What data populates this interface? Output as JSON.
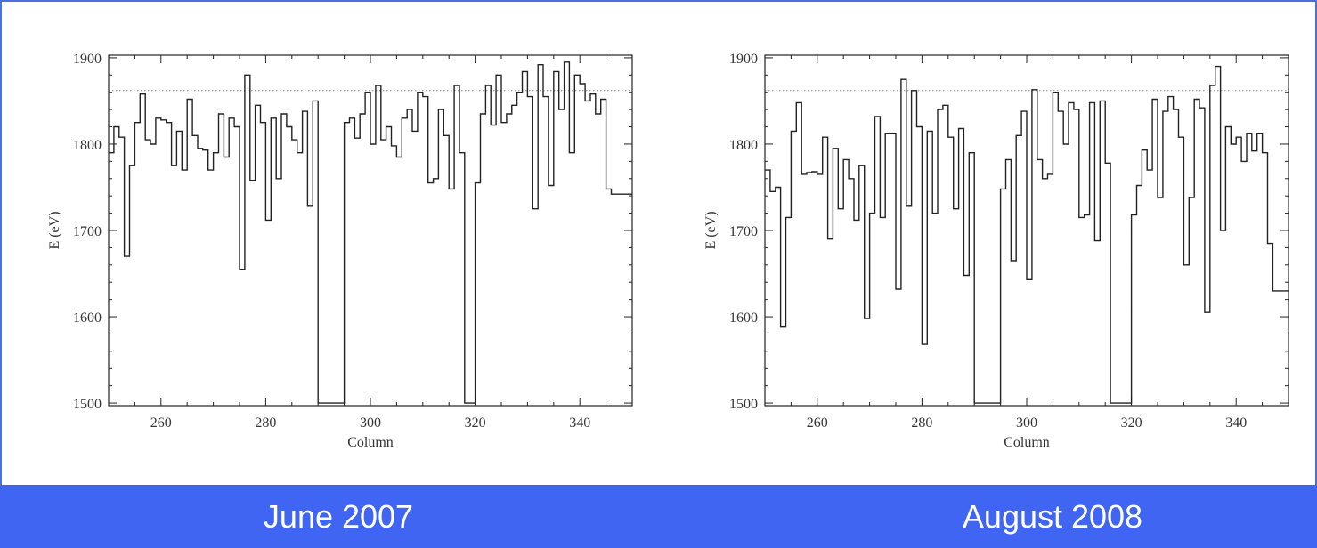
{
  "colors": {
    "banner": "#3f65f2",
    "border": "#4a6fe3",
    "line": "#222222",
    "reference_line": "#888888"
  },
  "captions": [
    "June 2007",
    "August 2008"
  ],
  "chart_data": [
    {
      "type": "line",
      "title": "",
      "xlabel": "Column",
      "ylabel": "E (eV)",
      "xlim": [
        250,
        350
      ],
      "ylim": [
        1497,
        1903
      ],
      "xticks": [
        260,
        280,
        300,
        320,
        340
      ],
      "yticks": [
        1500,
        1600,
        1700,
        1800,
        1900
      ],
      "reference_line": 1862,
      "grid": false,
      "series": [
        {
          "x": [
            250,
            251,
            252,
            253,
            254,
            255,
            256,
            257,
            258,
            259,
            260,
            261,
            262,
            263,
            264,
            265,
            266,
            267,
            268,
            269,
            270,
            271,
            272,
            273,
            274,
            275,
            276,
            277,
            278,
            279,
            280,
            281,
            282,
            283,
            284,
            285,
            286,
            287,
            288,
            289,
            290,
            291,
            292,
            293,
            294,
            295,
            296,
            297,
            298,
            299,
            300,
            301,
            302,
            303,
            304,
            305,
            306,
            307,
            308,
            309,
            310,
            311,
            312,
            313,
            314,
            315,
            316,
            317,
            318,
            319,
            320,
            321,
            322,
            323,
            324,
            325,
            326,
            327,
            328,
            329,
            330,
            331,
            332,
            333,
            334,
            335,
            336,
            337,
            338,
            339,
            340,
            341,
            342,
            343,
            344,
            345,
            346,
            347,
            348,
            349
          ],
          "y": [
            1790,
            1820,
            1808,
            1670,
            1775,
            1825,
            1858,
            1805,
            1800,
            1830,
            1828,
            1825,
            1775,
            1815,
            1770,
            1852,
            1810,
            1795,
            1793,
            1770,
            1790,
            1835,
            1785,
            1830,
            1820,
            1655,
            1880,
            1758,
            1845,
            1825,
            1712,
            1830,
            1760,
            1835,
            1820,
            1805,
            1790,
            1838,
            1728,
            1850,
            1500,
            1500,
            1500,
            1500,
            1500,
            1825,
            1830,
            1807,
            1835,
            1860,
            1800,
            1868,
            1805,
            1820,
            1798,
            1785,
            1830,
            1840,
            1815,
            1860,
            1855,
            1755,
            1760,
            1840,
            1810,
            1748,
            1868,
            1790,
            1500,
            1500,
            1755,
            1835,
            1868,
            1822,
            1880,
            1825,
            1835,
            1845,
            1860,
            1884,
            1855,
            1725,
            1892,
            1855,
            1752,
            1884,
            1840,
            1895,
            1790,
            1880,
            1870,
            1850,
            1858,
            1835,
            1852,
            1748,
            1742,
            1742,
            1742,
            1742
          ]
        }
      ]
    },
    {
      "type": "line",
      "title": "",
      "xlabel": "Column",
      "ylabel": "E (eV)",
      "xlim": [
        250,
        350
      ],
      "ylim": [
        1497,
        1903
      ],
      "xticks": [
        260,
        280,
        300,
        320,
        340
      ],
      "yticks": [
        1500,
        1600,
        1700,
        1800,
        1900
      ],
      "reference_line": 1862,
      "grid": false,
      "series": [
        {
          "x": [
            250,
            251,
            252,
            253,
            254,
            255,
            256,
            257,
            258,
            259,
            260,
            261,
            262,
            263,
            264,
            265,
            266,
            267,
            268,
            269,
            270,
            271,
            272,
            273,
            274,
            275,
            276,
            277,
            278,
            279,
            280,
            281,
            282,
            283,
            284,
            285,
            286,
            287,
            288,
            289,
            290,
            291,
            292,
            293,
            294,
            295,
            296,
            297,
            298,
            299,
            300,
            301,
            302,
            303,
            304,
            305,
            306,
            307,
            308,
            309,
            310,
            311,
            312,
            313,
            314,
            315,
            316,
            317,
            318,
            319,
            320,
            321,
            322,
            323,
            324,
            325,
            326,
            327,
            328,
            329,
            330,
            331,
            332,
            333,
            334,
            335,
            336,
            337,
            338,
            339,
            340,
            341,
            342,
            343,
            344,
            345,
            346,
            347,
            348,
            349
          ],
          "y": [
            1770,
            1745,
            1750,
            1588,
            1715,
            1815,
            1848,
            1765,
            1767,
            1768,
            1765,
            1808,
            1690,
            1795,
            1725,
            1782,
            1760,
            1712,
            1775,
            1598,
            1720,
            1832,
            1715,
            1812,
            1812,
            1632,
            1875,
            1728,
            1862,
            1820,
            1568,
            1815,
            1720,
            1840,
            1845,
            1808,
            1725,
            1818,
            1648,
            1790,
            1500,
            1500,
            1500,
            1500,
            1500,
            1748,
            1782,
            1665,
            1810,
            1838,
            1643,
            1863,
            1782,
            1760,
            1765,
            1860,
            1838,
            1800,
            1848,
            1840,
            1715,
            1718,
            1848,
            1688,
            1850,
            1778,
            1500,
            1500,
            1500,
            1500,
            1718,
            1752,
            1793,
            1770,
            1852,
            1738,
            1838,
            1855,
            1840,
            1808,
            1660,
            1738,
            1852,
            1842,
            1605,
            1868,
            1890,
            1700,
            1820,
            1800,
            1808,
            1780,
            1812,
            1792,
            1812,
            1790,
            1685,
            1630,
            1630,
            1630
          ]
        }
      ]
    }
  ]
}
